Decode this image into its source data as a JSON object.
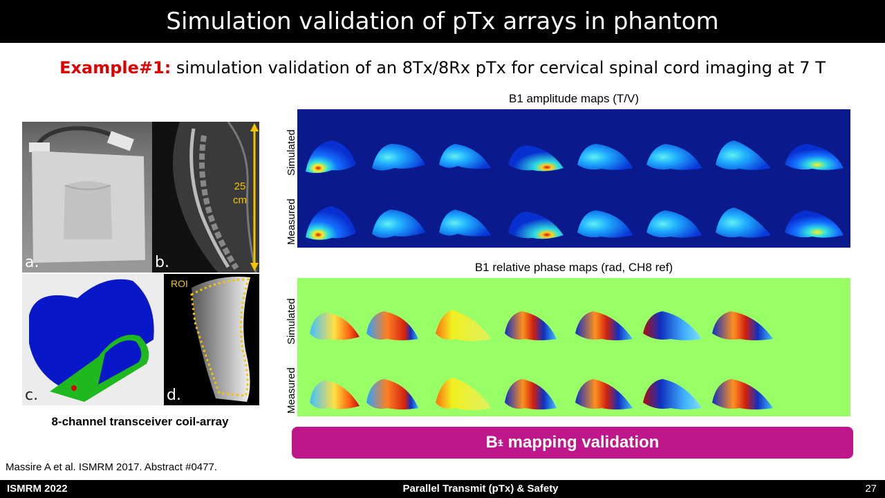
{
  "slide": {
    "title": "Simulation validation of pTx arrays in phantom",
    "subtitle_highlight": "Example#1:",
    "subtitle_text": " simulation validation of an 8Tx/8Rx pTx for cervical spinal cord imaging at 7 T"
  },
  "figure_left": {
    "panel_labels": [
      "a.",
      "b.",
      "c.",
      "d."
    ],
    "scale_label_line1": "25",
    "scale_label_line2": "cm",
    "roi_label": "ROI",
    "caption": "8-channel transceiver coil-array"
  },
  "amplitude_maps": {
    "title": "B1 amplitude maps (T/V)",
    "row_labels": [
      "Simulated",
      "Measured"
    ]
  },
  "phase_maps": {
    "title": "B1 relative phase maps (rad, CH8 ref)",
    "row_labels": [
      "Simulated",
      "Measured"
    ]
  },
  "banner": {
    "text_b": "B",
    "text_sub": "1",
    "text_sup": "+",
    "text_rest": " mapping validation"
  },
  "reference": "Massire A et al.  ISMRM 2017. Abstract #0477.",
  "footer": {
    "left": "ISMRM  2022",
    "center": "Parallel Transmit (pTx) & Safety",
    "page": "27"
  },
  "colors": {
    "title_bg": "#000000",
    "highlight": "#e00000",
    "banner_bg": "#c0168c",
    "amplitude_bg": "#0a1a8c",
    "phase_bg": "#99ff66"
  }
}
